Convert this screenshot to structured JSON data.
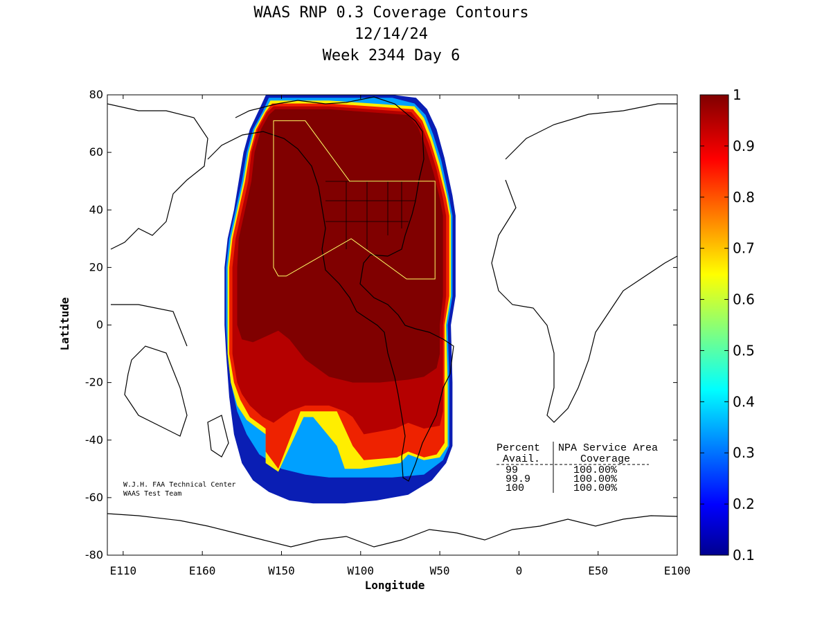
{
  "header": {
    "title_line1": "WAAS RNP 0.3 Coverage Contours",
    "title_line2": "12/14/24",
    "title_line3": "Week 2344 Day 6"
  },
  "chart_data": {
    "type": "heatmap",
    "title": "WAAS RNP 0.3 Coverage Contours",
    "xlabel": "Longitude",
    "ylabel": "Latitude",
    "xlim": [
      100,
      460
    ],
    "ylim": [
      -80,
      80
    ],
    "x_ticks": [
      {
        "value": 110,
        "label": "E110"
      },
      {
        "value": 160,
        "label": "E160"
      },
      {
        "value": 210,
        "label": "W150"
      },
      {
        "value": 260,
        "label": "W100"
      },
      {
        "value": 310,
        "label": "W50"
      },
      {
        "value": 360,
        "label": "0"
      },
      {
        "value": 410,
        "label": "E50"
      },
      {
        "value": 460,
        "label": "E100"
      }
    ],
    "y_ticks": [
      {
        "value": 80,
        "label": "80"
      },
      {
        "value": 60,
        "label": "60"
      },
      {
        "value": 40,
        "label": "40"
      },
      {
        "value": 20,
        "label": "20"
      },
      {
        "value": 0,
        "label": "0"
      },
      {
        "value": -20,
        "label": "-20"
      },
      {
        "value": -40,
        "label": "-40"
      },
      {
        "value": -60,
        "label": "-60"
      },
      {
        "value": -80,
        "label": "-80"
      }
    ],
    "colorbar": {
      "min": 0.1,
      "max": 1,
      "ticks": [
        {
          "value": 1,
          "label": "1"
        },
        {
          "value": 0.9,
          "label": "0.9"
        },
        {
          "value": 0.8,
          "label": "0.8"
        },
        {
          "value": 0.7,
          "label": "0.7"
        },
        {
          "value": 0.6,
          "label": "0.6"
        },
        {
          "value": 0.5,
          "label": "0.5"
        },
        {
          "value": 0.4,
          "label": "0.4"
        },
        {
          "value": 0.3,
          "label": "0.3"
        },
        {
          "value": 0.2,
          "label": "0.2"
        },
        {
          "value": 0.1,
          "label": "0.1"
        }
      ]
    },
    "contour_regions": [
      {
        "level": 0.1,
        "color": "#0a1eb4",
        "polygon": [
          [
            201,
            81
          ],
          [
            211,
            81
          ],
          [
            240,
            80
          ],
          [
            262,
            80
          ],
          [
            280,
            80
          ],
          [
            295,
            79
          ],
          [
            302,
            75
          ],
          [
            308,
            68
          ],
          [
            313,
            58
          ],
          [
            318,
            45
          ],
          [
            320,
            38
          ],
          [
            320,
            10
          ],
          [
            317,
            0
          ],
          [
            318,
            -20
          ],
          [
            318,
            -30
          ],
          [
            318,
            -42
          ],
          [
            314,
            -48
          ],
          [
            305,
            -54
          ],
          [
            290,
            -59
          ],
          [
            270,
            -61
          ],
          [
            250,
            -62
          ],
          [
            230,
            -62
          ],
          [
            215,
            -61
          ],
          [
            202,
            -58
          ],
          [
            192,
            -54
          ],
          [
            185,
            -48
          ],
          [
            180,
            -38
          ],
          [
            177,
            -25
          ],
          [
            175,
            -10
          ],
          [
            174,
            0
          ],
          [
            174,
            20
          ],
          [
            176,
            30
          ],
          [
            180,
            40
          ],
          [
            183,
            50
          ],
          [
            186,
            60
          ],
          [
            190,
            68
          ],
          [
            196,
            75
          ]
        ]
      },
      {
        "level": 0.3,
        "color": "#00a0ff",
        "polygon": [
          [
            202,
            79
          ],
          [
            212,
            79
          ],
          [
            240,
            79
          ],
          [
            262,
            79
          ],
          [
            280,
            79
          ],
          [
            294,
            77
          ],
          [
            301,
            73
          ],
          [
            306,
            66
          ],
          [
            311,
            57
          ],
          [
            316,
            44
          ],
          [
            318,
            38
          ],
          [
            318,
            10
          ],
          [
            315,
            0
          ],
          [
            316,
            -20
          ],
          [
            316,
            -30
          ],
          [
            316,
            -42
          ],
          [
            312,
            -47
          ],
          [
            300,
            -52
          ],
          [
            280,
            -53
          ],
          [
            260,
            -53
          ],
          [
            240,
            -53
          ],
          [
            225,
            -52
          ],
          [
            210,
            -50
          ],
          [
            196,
            -45
          ],
          [
            188,
            -38
          ],
          [
            182,
            -30
          ],
          [
            178,
            -20
          ],
          [
            176,
            -10
          ],
          [
            175,
            0
          ],
          [
            175,
            20
          ],
          [
            177,
            30
          ],
          [
            181,
            40
          ],
          [
            185,
            50
          ],
          [
            188,
            60
          ],
          [
            192,
            68
          ],
          [
            198,
            74
          ]
        ]
      },
      {
        "level": 0.55,
        "color": "#ffee00",
        "polygon": [
          [
            203,
            78
          ],
          [
            240,
            78
          ],
          [
            294,
            76
          ],
          [
            300,
            72
          ],
          [
            305,
            65
          ],
          [
            310,
            56
          ],
          [
            315,
            44
          ],
          [
            317,
            38
          ],
          [
            317,
            10
          ],
          [
            314,
            0
          ],
          [
            315,
            -20
          ],
          [
            315,
            -30
          ],
          [
            315,
            -42
          ],
          [
            310,
            -46
          ],
          [
            300,
            -47
          ],
          [
            290,
            -45
          ],
          [
            285,
            -48
          ],
          [
            260,
            -50
          ],
          [
            250,
            -50
          ],
          [
            245,
            -42
          ],
          [
            230,
            -32
          ],
          [
            224,
            -32
          ],
          [
            208,
            -51
          ],
          [
            200,
            -48
          ],
          [
            200,
            -38
          ],
          [
            188,
            -33
          ],
          [
            182,
            -28
          ],
          [
            178,
            -20
          ],
          [
            176,
            -10
          ],
          [
            176,
            0
          ],
          [
            176,
            20
          ],
          [
            178,
            30
          ],
          [
            182,
            40
          ],
          [
            186,
            50
          ],
          [
            189,
            60
          ],
          [
            193,
            68
          ],
          [
            199,
            74
          ]
        ]
      },
      {
        "level": 0.85,
        "color": "#ee2200",
        "polygon": [
          [
            204,
            77
          ],
          [
            240,
            77
          ],
          [
            293,
            75
          ],
          [
            299,
            71
          ],
          [
            304,
            64
          ],
          [
            309,
            55
          ],
          [
            314,
            44
          ],
          [
            316,
            38
          ],
          [
            316,
            10
          ],
          [
            313,
            0
          ],
          [
            313,
            -20
          ],
          [
            313,
            -30
          ],
          [
            313,
            -41
          ],
          [
            308,
            -45
          ],
          [
            300,
            -46
          ],
          [
            290,
            -44
          ],
          [
            283,
            -46
          ],
          [
            262,
            -47
          ],
          [
            255,
            -42
          ],
          [
            250,
            -36
          ],
          [
            245,
            -30
          ],
          [
            228,
            -30
          ],
          [
            222,
            -30
          ],
          [
            208,
            -50
          ],
          [
            200,
            -44
          ],
          [
            200,
            -36
          ],
          [
            190,
            -32
          ],
          [
            184,
            -26
          ],
          [
            180,
            -20
          ],
          [
            177,
            -10
          ],
          [
            177,
            0
          ],
          [
            177,
            20
          ],
          [
            179,
            30
          ],
          [
            183,
            40
          ],
          [
            187,
            50
          ],
          [
            190,
            60
          ],
          [
            194,
            68
          ],
          [
            200,
            74
          ]
        ]
      },
      {
        "level": 0.95,
        "color": "#b50000",
        "polygon": [
          [
            205,
            76
          ],
          [
            240,
            76
          ],
          [
            292,
            74
          ],
          [
            298,
            70
          ],
          [
            303,
            63
          ],
          [
            308,
            54
          ],
          [
            312,
            44
          ],
          [
            314,
            38
          ],
          [
            314,
            10
          ],
          [
            312,
            0
          ],
          [
            312,
            -20
          ],
          [
            312,
            -30
          ],
          [
            310,
            -35
          ],
          [
            300,
            -36
          ],
          [
            290,
            -34
          ],
          [
            282,
            -36
          ],
          [
            262,
            -38
          ],
          [
            255,
            -32
          ],
          [
            250,
            -30
          ],
          [
            240,
            -28
          ],
          [
            225,
            -28
          ],
          [
            215,
            -30
          ],
          [
            205,
            -34
          ],
          [
            198,
            -32
          ],
          [
            190,
            -28
          ],
          [
            185,
            -24
          ],
          [
            182,
            -20
          ],
          [
            179,
            -10
          ],
          [
            179,
            0
          ],
          [
            179,
            20
          ],
          [
            181,
            30
          ],
          [
            185,
            40
          ],
          [
            189,
            50
          ],
          [
            191,
            60
          ],
          [
            195,
            68
          ],
          [
            201,
            74
          ]
        ]
      },
      {
        "level": 1,
        "color": "#800000",
        "polygon": [
          [
            206,
            75
          ],
          [
            240,
            75
          ],
          [
            290,
            73
          ],
          [
            296,
            69
          ],
          [
            301,
            62
          ],
          [
            306,
            53
          ],
          [
            310,
            44
          ],
          [
            312,
            38
          ],
          [
            312,
            10
          ],
          [
            310,
            0
          ],
          [
            310,
            -10
          ],
          [
            308,
            -15
          ],
          [
            300,
            -18
          ],
          [
            290,
            -19
          ],
          [
            272,
            -20
          ],
          [
            255,
            -20
          ],
          [
            240,
            -18
          ],
          [
            225,
            -12
          ],
          [
            215,
            -5
          ],
          [
            208,
            -2
          ],
          [
            200,
            -4
          ],
          [
            192,
            -6
          ],
          [
            185,
            -5
          ],
          [
            182,
            0
          ],
          [
            182,
            20
          ],
          [
            183,
            30
          ],
          [
            187,
            40
          ],
          [
            191,
            50
          ],
          [
            193,
            60
          ],
          [
            197,
            68
          ],
          [
            202,
            73
          ]
        ]
      }
    ],
    "service_area_boundary": [
      [
        207,
        71
      ],
      [
        225,
        71
      ],
      [
        253,
        50
      ],
      [
        307,
        50
      ],
      [
        307,
        16
      ],
      [
        289,
        16
      ],
      [
        254,
        30
      ],
      [
        213,
        17
      ],
      [
        208,
        17
      ],
      [
        205,
        20
      ],
      [
        205,
        71
      ]
    ],
    "table": {
      "header1": [
        "Percent",
        "NPA Service Area"
      ],
      "header2": [
        "Avail.",
        "Coverage"
      ],
      "rows": [
        [
          "99",
          "100.00%"
        ],
        [
          "99.9",
          "100.00%"
        ],
        [
          "100",
          "100.00%"
        ]
      ]
    },
    "credit": {
      "line1": "W.J.H. FAA Technical Center",
      "line2": "WAAS Test Team"
    }
  }
}
